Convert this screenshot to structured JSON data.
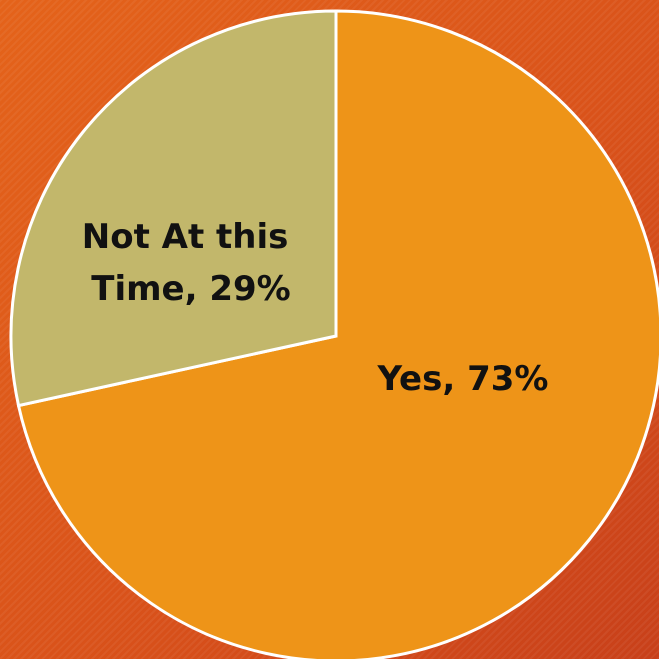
{
  "chart_data": {
    "type": "pie",
    "slices": [
      {
        "label": "Yes",
        "value": 73,
        "display": "Yes, 73%",
        "color": "#ee9418"
      },
      {
        "label": "Not At this Time",
        "value": 29,
        "display_lines": [
          "Not At this",
          "Time, 29%"
        ],
        "color": "#c2b76b"
      }
    ]
  },
  "colors": {
    "slice_border": "#ffffff"
  }
}
